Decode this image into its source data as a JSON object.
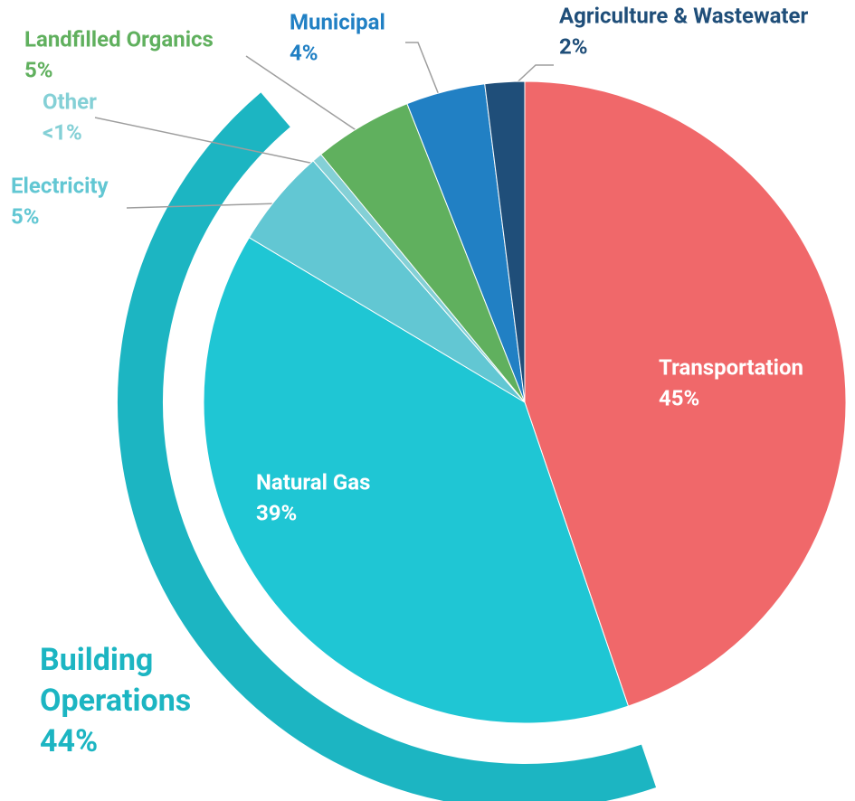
{
  "chart_data": {
    "type": "pie",
    "categories": [
      "Transportation",
      "Natural Gas",
      "Electricity",
      "Other",
      "Landfilled Organics",
      "Municipal",
      "Agriculture & Wastewater"
    ],
    "values": [
      45,
      39,
      5,
      0.5,
      5,
      4,
      2
    ],
    "value_labels": [
      "45%",
      "39%",
      "5%",
      "<1%",
      "5%",
      "4%",
      "2%"
    ],
    "colors": [
      "#f0686a",
      "#1fc6d4",
      "#62c7d3",
      "#84d0d6",
      "#60b05e",
      "#2180c4",
      "#1f4e79"
    ],
    "annotation": {
      "text": [
        "Building",
        "Operations"
      ],
      "value": 44,
      "value_label": "44%",
      "color": "#1cb5c2"
    }
  }
}
